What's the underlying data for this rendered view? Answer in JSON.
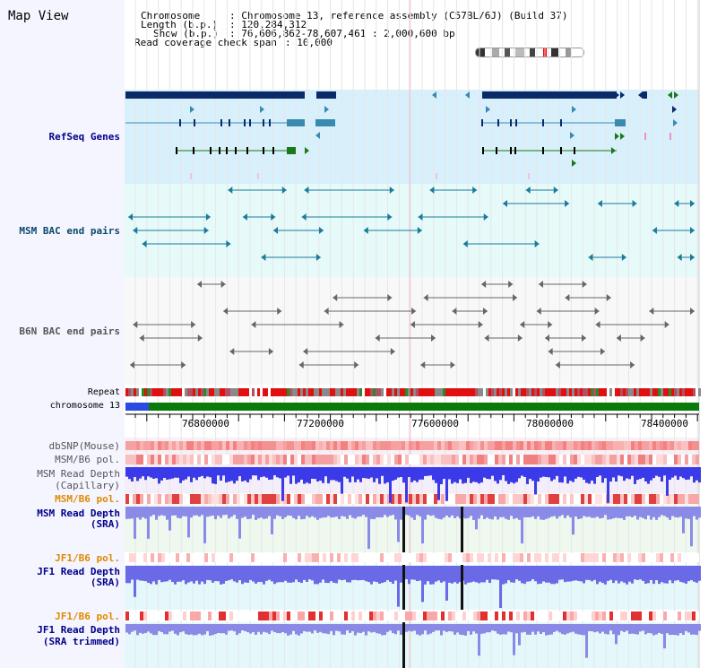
{
  "title": "Map View",
  "header": {
    "chromosome_label": "Chromosome",
    "chromosome_value": ": Chromosome 13, reference assembly (C57BL/6J) (Build 37)",
    "length_label": "Length (b.p.)",
    "length_value": ": 120,284,312",
    "show_label": "Show (b.p.)",
    "show_value": ": 76,606,862-78,607,461 : 2,000,600 bp",
    "coverage_label": "Read coverage check span",
    "coverage_value": ": 10,000"
  },
  "tracks": {
    "refseq": "RefSeq Genes",
    "msm_bac": "MSM BAC end pairs",
    "b6n_bac": "B6N BAC end pairs",
    "repeat": "Repeat",
    "chromosome": "chromosome 13",
    "dbsnp": "dbSNP(Mouse)",
    "msm_pol": "MSM/B6 pol.",
    "msm_depth_cap_1": "MSM Read Depth",
    "msm_depth_cap_2": "(Capillary)",
    "msm_pol_2": "MSM/B6 pol.",
    "msm_depth_sra_1": "MSM Read Depth",
    "msm_depth_sra_2": "(SRA)",
    "jf1_pol": "JF1/B6 pol.",
    "jf1_depth_1": "JF1 Read Depth",
    "jf1_depth_2": "(SRA)",
    "jf1_pol_2": "JF1/B6 pol.",
    "jf1_trim_1": "JF1 Read Depth",
    "jf1_trim_2": "(SRA trimmed)"
  },
  "axis": {
    "ticks": [
      "76800000",
      "77200000",
      "77600000",
      "78000000",
      "78400000"
    ]
  },
  "colors": {
    "refseq_bg": "#d8f0fc",
    "bac_bg": "#e6fafa",
    "gene_dark": "#0a2a6a",
    "gene_mid": "#3a8ab0",
    "gene_green": "#1a7a1a",
    "msm_bac": "#1a7a9a",
    "b6n_bac": "#666666",
    "label_blue": "#00008b",
    "label_teal": "#0a4a6a",
    "label_orange": "#e08a00",
    "label_gray": "#555555"
  }
}
